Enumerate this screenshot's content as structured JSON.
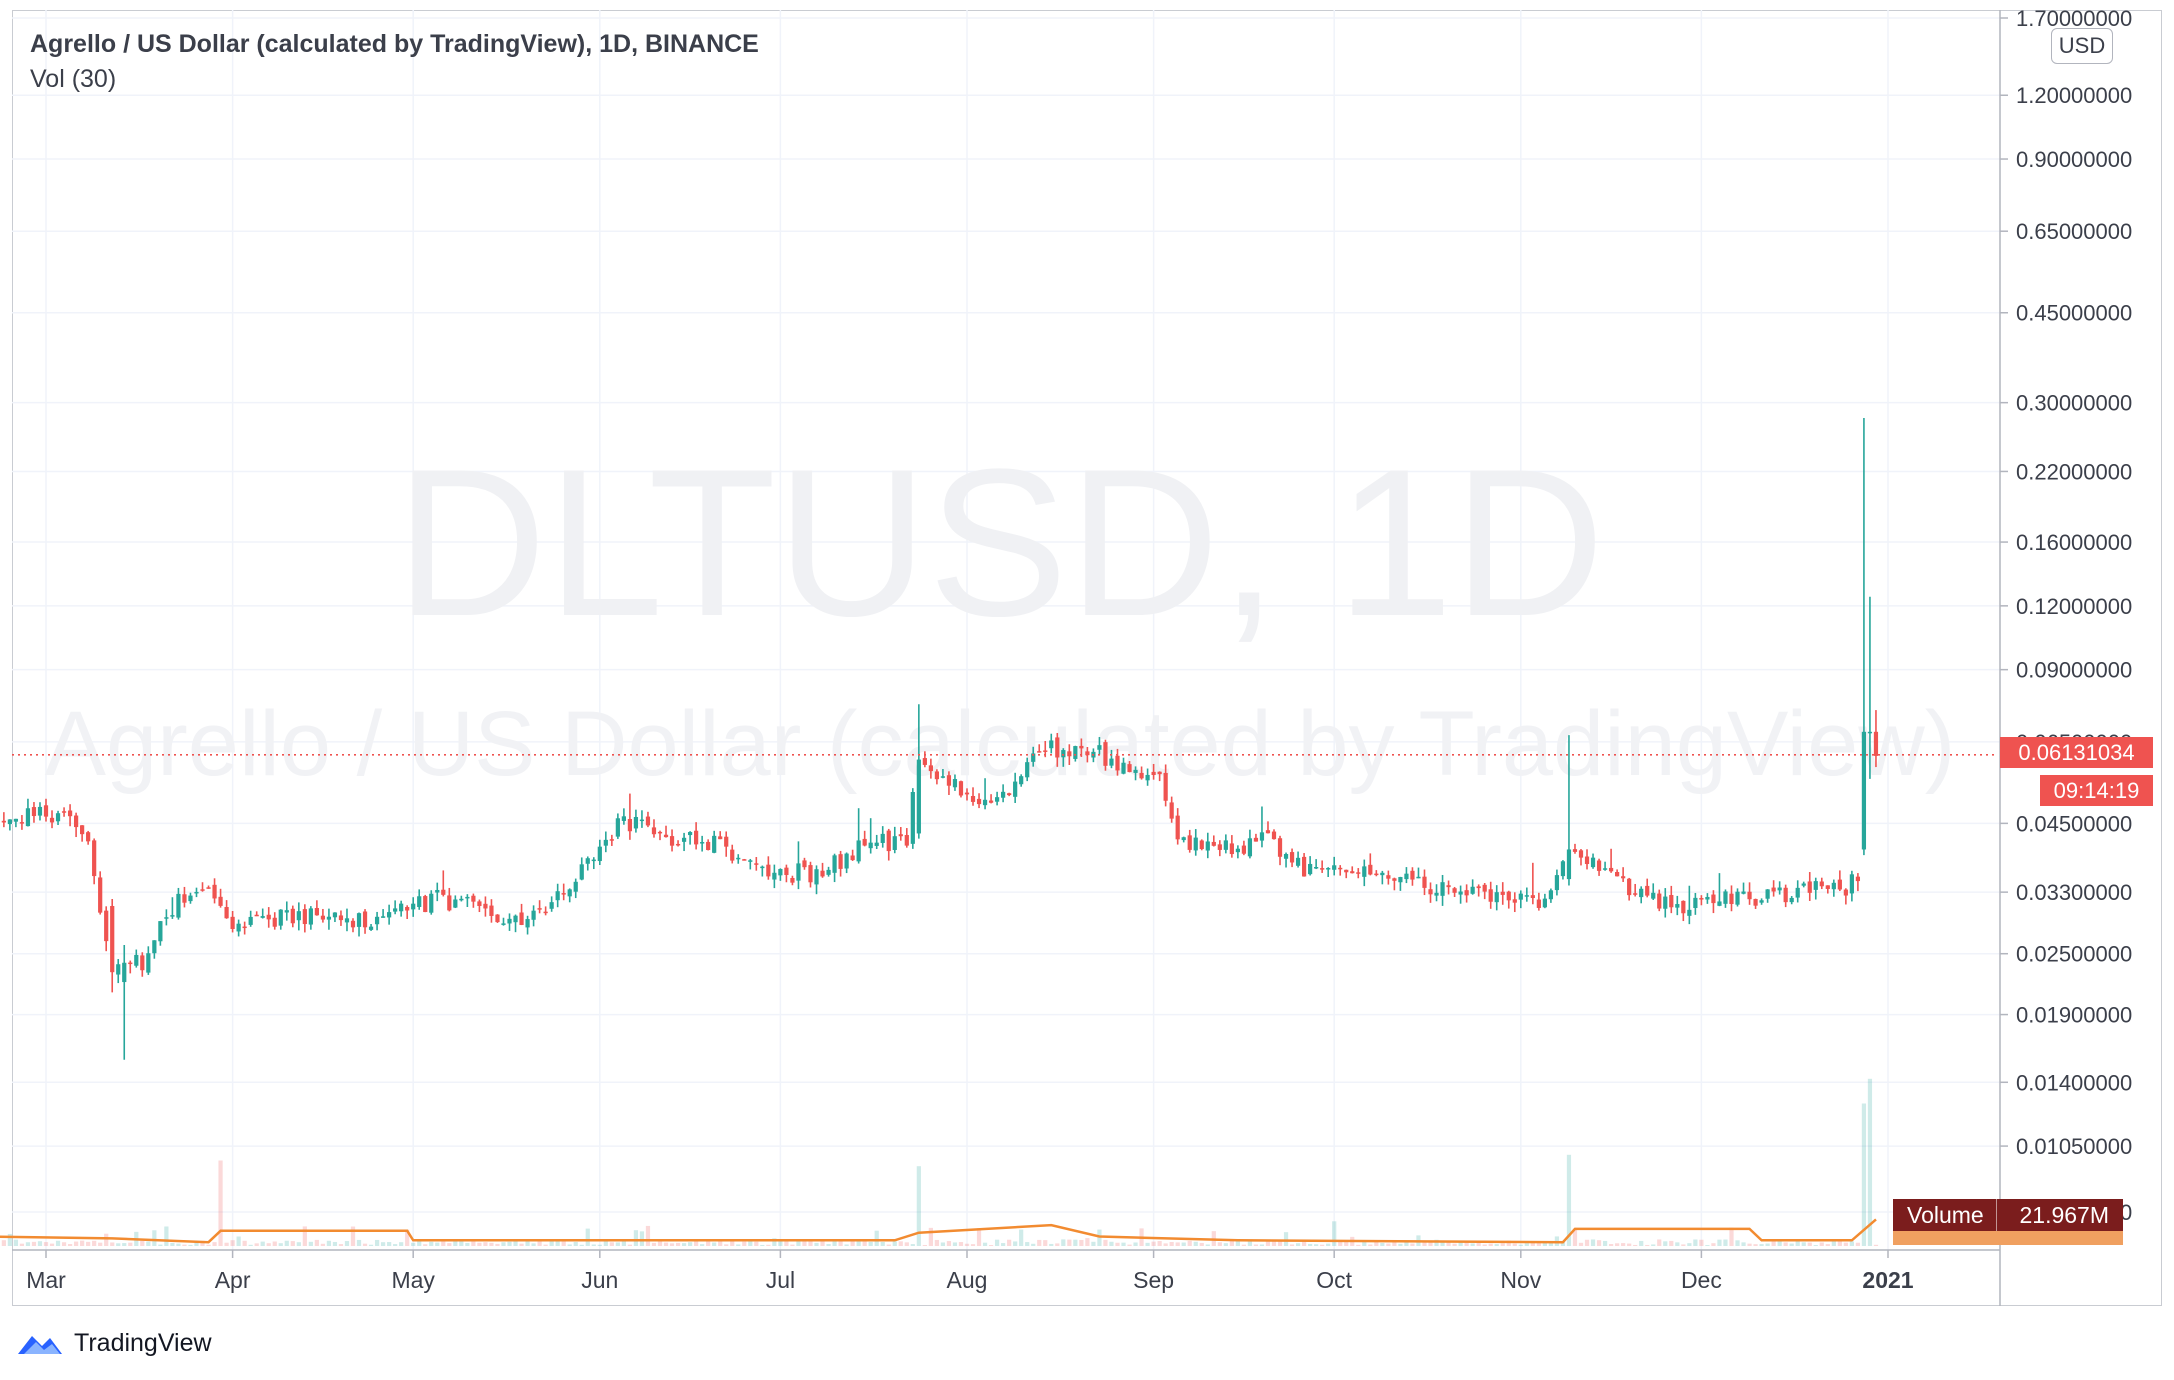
{
  "header": {
    "title": "Agrello / US Dollar (calculated by TradingView), 1D, BINANCE",
    "indicator": "Vol (30)"
  },
  "watermark": {
    "symbol": "DLTUSD, 1D",
    "description": "Agrello / US Dollar (calculated by TradingView)"
  },
  "currency_button": "USD",
  "last_price": "0.06131034",
  "countdown": "09:14:19",
  "volume_label": {
    "name": "Volume",
    "value": "21.967M"
  },
  "branding": "TradingView",
  "colors": {
    "up": "#26a69a",
    "down": "#ef5350",
    "volume_ma": "#f28b30",
    "last_price_line": "#ef5350",
    "watermark": "#f0f1f4"
  },
  "chart_data": {
    "type": "candlestick",
    "scale": "log",
    "y_ticks": [
      "1.70000000",
      "1.20000000",
      "0.90000000",
      "0.65000000",
      "0.45000000",
      "0.30000000",
      "0.22000000",
      "0.16000000",
      "0.12000000",
      "0.09000000",
      "0.06500000",
      "0.04500000",
      "0.03300000",
      "0.02500000",
      "0.01900000",
      "0.01400000",
      "0.01050000",
      "0.00780000"
    ],
    "x_ticks": [
      "Mar",
      "Apr",
      "May",
      "Jun",
      "Jul",
      "Aug",
      "Sep",
      "Oct",
      "Nov",
      "Dec",
      "2021"
    ],
    "x_range": [
      "2020-02-20",
      "2021-01-05"
    ],
    "y_range": [
      0.0075,
      1.75
    ],
    "grid": true,
    "price_anchors": [
      {
        "date": "2020-02-20",
        "close": 0.045
      },
      {
        "date": "2020-03-03",
        "close": 0.047
      },
      {
        "date": "2020-03-08",
        "close": 0.042
      },
      {
        "date": "2020-03-12",
        "close": 0.023
      },
      {
        "date": "2020-03-17",
        "close": 0.024
      },
      {
        "date": "2020-03-22",
        "close": 0.031
      },
      {
        "date": "2020-03-28",
        "close": 0.034
      },
      {
        "date": "2020-04-01",
        "close": 0.029
      },
      {
        "date": "2020-04-15",
        "close": 0.03
      },
      {
        "date": "2020-04-25",
        "close": 0.029
      },
      {
        "date": "2020-05-05",
        "close": 0.032
      },
      {
        "date": "2020-05-15",
        "close": 0.03
      },
      {
        "date": "2020-05-20",
        "close": 0.029
      },
      {
        "date": "2020-05-27",
        "close": 0.034
      },
      {
        "date": "2020-06-05",
        "close": 0.046
      },
      {
        "date": "2020-06-10",
        "close": 0.043
      },
      {
        "date": "2020-06-20",
        "close": 0.041
      },
      {
        "date": "2020-06-30",
        "close": 0.036
      },
      {
        "date": "2020-07-08",
        "close": 0.036
      },
      {
        "date": "2020-07-15",
        "close": 0.041
      },
      {
        "date": "2020-07-22",
        "close": 0.042
      },
      {
        "date": "2020-07-24",
        "close": 0.06
      },
      {
        "date": "2020-07-29",
        "close": 0.054
      },
      {
        "date": "2020-08-03",
        "close": 0.048
      },
      {
        "date": "2020-08-10",
        "close": 0.054
      },
      {
        "date": "2020-08-13",
        "close": 0.063
      },
      {
        "date": "2020-08-22",
        "close": 0.063
      },
      {
        "date": "2020-08-26",
        "close": 0.057
      },
      {
        "date": "2020-09-02",
        "close": 0.058
      },
      {
        "date": "2020-09-05",
        "close": 0.042
      },
      {
        "date": "2020-09-12",
        "close": 0.04
      },
      {
        "date": "2020-09-20",
        "close": 0.042
      },
      {
        "date": "2020-09-27",
        "close": 0.036
      },
      {
        "date": "2020-10-05",
        "close": 0.036
      },
      {
        "date": "2020-10-15",
        "close": 0.034
      },
      {
        "date": "2020-10-25",
        "close": 0.033
      },
      {
        "date": "2020-11-04",
        "close": 0.031
      },
      {
        "date": "2020-11-09",
        "close": 0.04
      },
      {
        "date": "2020-11-15",
        "close": 0.036
      },
      {
        "date": "2020-11-24",
        "close": 0.031
      },
      {
        "date": "2020-12-05",
        "close": 0.032
      },
      {
        "date": "2020-12-15",
        "close": 0.033
      },
      {
        "date": "2020-12-25",
        "close": 0.034
      },
      {
        "date": "2020-12-27",
        "close": 0.036
      },
      {
        "date": "2020-12-28",
        "close": 0.068
      },
      {
        "date": "2020-12-29",
        "close": 0.068
      },
      {
        "date": "2020-12-30",
        "close": 0.061
      }
    ],
    "notable_candles": [
      {
        "date": "2020-03-12",
        "open": 0.031,
        "high": 0.032,
        "low": 0.021,
        "close": 0.023
      },
      {
        "date": "2020-03-14",
        "open": 0.022,
        "high": 0.026,
        "low": 0.0155,
        "close": 0.024
      },
      {
        "date": "2020-07-24",
        "open": 0.043,
        "high": 0.077,
        "low": 0.042,
        "close": 0.06
      },
      {
        "date": "2020-11-09",
        "open": 0.035,
        "high": 0.067,
        "low": 0.034,
        "close": 0.04
      },
      {
        "date": "2020-12-28",
        "open": 0.04,
        "high": 0.28,
        "low": 0.039,
        "close": 0.068
      },
      {
        "date": "2020-12-29",
        "open": 0.068,
        "high": 0.125,
        "low": 0.055,
        "close": 0.068
      },
      {
        "date": "2020-12-30",
        "open": 0.068,
        "high": 0.075,
        "low": 0.058,
        "close": 0.061
      }
    ],
    "volume_spikes": [
      {
        "date": "2020-03-30",
        "value": 0.45
      },
      {
        "date": "2020-07-24",
        "value": 0.42
      },
      {
        "date": "2020-11-09",
        "value": 0.48
      },
      {
        "date": "2020-10-01",
        "value": 0.13
      },
      {
        "date": "2020-12-28",
        "value": 0.75
      },
      {
        "date": "2020-12-29",
        "value": 0.88
      }
    ],
    "volume_ma_anchors": [
      {
        "date": "2020-02-20",
        "value": 0.05
      },
      {
        "date": "2020-03-12",
        "value": 0.04
      },
      {
        "date": "2020-03-28",
        "value": 0.02
      },
      {
        "date": "2020-03-30",
        "value": 0.08
      },
      {
        "date": "2020-04-30",
        "value": 0.08
      },
      {
        "date": "2020-05-01",
        "value": 0.03
      },
      {
        "date": "2020-07-20",
        "value": 0.03
      },
      {
        "date": "2020-07-24",
        "value": 0.07
      },
      {
        "date": "2020-08-15",
        "value": 0.11
      },
      {
        "date": "2020-08-23",
        "value": 0.05
      },
      {
        "date": "2020-09-15",
        "value": 0.03
      },
      {
        "date": "2020-11-08",
        "value": 0.02
      },
      {
        "date": "2020-11-10",
        "value": 0.09
      },
      {
        "date": "2020-12-09",
        "value": 0.09
      },
      {
        "date": "2020-12-11",
        "value": 0.03
      },
      {
        "date": "2020-12-26",
        "value": 0.03
      },
      {
        "date": "2020-12-30",
        "value": 0.14
      }
    ]
  }
}
